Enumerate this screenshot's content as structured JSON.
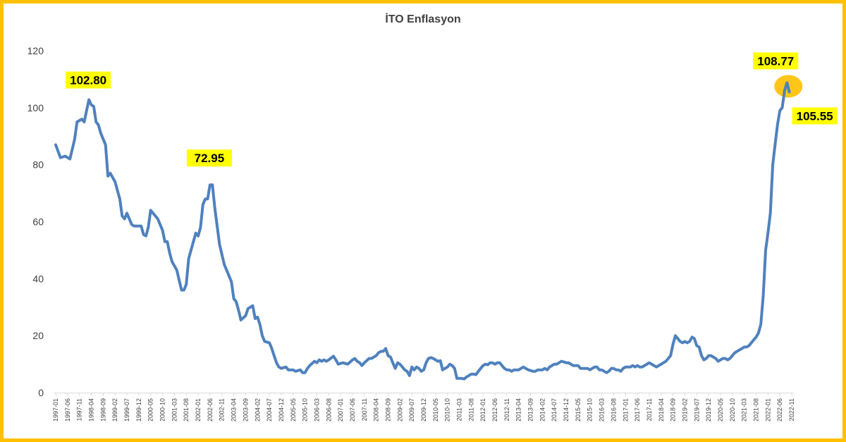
{
  "chart_data": {
    "type": "line",
    "title": "İTO Enflasyon",
    "xlabel": "",
    "ylabel": "",
    "ylim": [
      0,
      120
    ],
    "yticks": [
      0,
      20,
      40,
      60,
      80,
      100,
      120
    ],
    "grid": false,
    "line_color": "#4F81BD",
    "highlight_color": "#FFFF00",
    "peak_marker_color": "#FFC000",
    "frame_color": "#FFC000",
    "x_tick_labels": [
      "1997-01",
      "1997-06",
      "1997-11",
      "1998-04",
      "1998-09",
      "1999-02",
      "1999-07",
      "1999-12",
      "2000-05",
      "2000-10",
      "2001-03",
      "2001-08",
      "2002-01",
      "2002-06",
      "2002-11",
      "2003-04",
      "2003-09",
      "2004-02",
      "2004-07",
      "2004-12",
      "2005-05",
      "2005-10",
      "2006-03",
      "2006-08",
      "2007-01",
      "2007-06",
      "2007-11",
      "2008-04",
      "2008-09",
      "2009-02",
      "2009-07",
      "2009-12",
      "2010-05",
      "2010-10",
      "2011-03",
      "2011-08",
      "2012-01",
      "2012-06",
      "2012-11",
      "2013-04",
      "2013-09",
      "2014-02",
      "2014-07",
      "2014-12",
      "2015-05",
      "2015-10",
      "2016-03",
      "2016-08",
      "2017-01",
      "2017-06",
      "2017-11",
      "2018-04",
      "2018-09",
      "2019-02",
      "2019-07",
      "2019-12",
      "2020-05",
      "2020-10",
      "2021-03",
      "2021-08",
      "2022-01",
      "2022-06",
      "2022-11"
    ],
    "series": [
      {
        "points": [
          [
            "1997-01",
            87
          ],
          [
            "1997-03",
            82.5
          ],
          [
            "1997-05",
            83
          ],
          [
            "1997-07",
            82
          ],
          [
            "1997-09",
            89
          ],
          [
            "1997-10",
            95
          ],
          [
            "1997-12",
            96
          ],
          [
            "1998-01",
            95
          ],
          [
            "1998-03",
            102.8
          ],
          [
            "1998-04",
            101
          ],
          [
            "1998-05",
            100.5
          ],
          [
            "1998-06",
            95
          ],
          [
            "1998-07",
            94
          ],
          [
            "1998-08",
            91
          ],
          [
            "1998-10",
            87
          ],
          [
            "1998-11",
            76
          ],
          [
            "1998-12",
            77
          ],
          [
            "1999-02",
            74
          ],
          [
            "1999-04",
            68
          ],
          [
            "1999-05",
            62
          ],
          [
            "1999-06",
            61
          ],
          [
            "1999-07",
            63
          ],
          [
            "1999-09",
            59
          ],
          [
            "1999-10",
            58.5
          ],
          [
            "2000-01",
            58.5
          ],
          [
            "2000-02",
            55.5
          ],
          [
            "2000-03",
            55
          ],
          [
            "2000-04",
            58
          ],
          [
            "2000-05",
            64
          ],
          [
            "2000-07",
            62
          ],
          [
            "2000-08",
            61
          ],
          [
            "2000-10",
            57
          ],
          [
            "2000-11",
            53
          ],
          [
            "2000-12",
            53
          ],
          [
            "2001-01",
            49
          ],
          [
            "2001-02",
            46
          ],
          [
            "2001-04",
            43
          ],
          [
            "2001-05",
            39.5
          ],
          [
            "2001-06",
            36
          ],
          [
            "2001-07",
            36
          ],
          [
            "2001-08",
            38
          ],
          [
            "2001-09",
            47
          ],
          [
            "2001-11",
            53
          ],
          [
            "2001-12",
            56
          ],
          [
            "2002-01",
            55
          ],
          [
            "2002-02",
            58
          ],
          [
            "2002-03",
            66
          ],
          [
            "2002-04",
            68
          ],
          [
            "2002-05",
            68
          ],
          [
            "2002-06",
            72.95
          ],
          [
            "2002-07",
            72.95
          ],
          [
            "2002-08",
            65
          ],
          [
            "2002-10",
            52
          ],
          [
            "2002-12",
            45
          ],
          [
            "2003-02",
            41
          ],
          [
            "2003-03",
            39
          ],
          [
            "2003-04",
            33
          ],
          [
            "2003-05",
            32
          ],
          [
            "2003-06",
            29
          ],
          [
            "2003-07",
            25.5
          ],
          [
            "2003-09",
            27
          ],
          [
            "2003-10",
            29.5
          ],
          [
            "2003-12",
            30.5
          ],
          [
            "2004-01",
            26
          ],
          [
            "2004-02",
            26.5
          ],
          [
            "2004-03",
            24
          ],
          [
            "2004-04",
            20
          ],
          [
            "2004-05",
            18
          ],
          [
            "2004-07",
            17.5
          ],
          [
            "2004-08",
            15.5
          ],
          [
            "2004-09",
            13
          ],
          [
            "2004-10",
            10.5
          ],
          [
            "2004-11",
            9
          ],
          [
            "2004-12",
            8.5
          ],
          [
            "2005-02",
            9
          ],
          [
            "2005-03",
            8
          ],
          [
            "2005-05",
            8
          ],
          [
            "2005-06",
            7.5
          ],
          [
            "2005-08",
            8
          ],
          [
            "2005-09",
            7
          ],
          [
            "2005-10",
            7
          ],
          [
            "2005-11",
            8.5
          ],
          [
            "2005-12",
            9.5
          ],
          [
            "2006-02",
            11
          ],
          [
            "2006-03",
            10.5
          ],
          [
            "2006-04",
            11.5
          ],
          [
            "2006-05",
            11
          ],
          [
            "2006-06",
            11.5
          ],
          [
            "2006-07",
            11
          ],
          [
            "2006-08",
            11.5
          ],
          [
            "2006-10",
            12.8
          ],
          [
            "2006-11",
            11.5
          ],
          [
            "2006-12",
            10
          ],
          [
            "2007-02",
            10.5
          ],
          [
            "2007-04",
            10
          ],
          [
            "2007-06",
            11.5
          ],
          [
            "2007-07",
            12
          ],
          [
            "2007-08",
            11
          ],
          [
            "2007-09",
            10.5
          ],
          [
            "2007-10",
            9.5
          ],
          [
            "2007-11",
            10.5
          ],
          [
            "2008-01",
            12
          ],
          [
            "2008-02",
            12
          ],
          [
            "2008-03",
            12.5
          ],
          [
            "2008-04",
            13
          ],
          [
            "2008-05",
            14
          ],
          [
            "2008-06",
            14.5
          ],
          [
            "2008-07",
            14.5
          ],
          [
            "2008-08",
            15.5
          ],
          [
            "2008-09",
            13
          ],
          [
            "2008-10",
            12.5
          ],
          [
            "2008-11",
            10.5
          ],
          [
            "2008-12",
            8.5
          ],
          [
            "2009-01",
            10.5
          ],
          [
            "2009-02",
            10
          ],
          [
            "2009-03",
            9
          ],
          [
            "2009-04",
            8
          ],
          [
            "2009-05",
            7.5
          ],
          [
            "2009-06",
            6
          ],
          [
            "2009-07",
            9
          ],
          [
            "2009-08",
            8
          ],
          [
            "2009-09",
            9
          ],
          [
            "2009-10",
            8.5
          ],
          [
            "2009-11",
            7.5
          ],
          [
            "2009-12",
            8
          ],
          [
            "2010-01",
            10.5
          ],
          [
            "2010-02",
            12
          ],
          [
            "2010-03",
            12.3
          ],
          [
            "2010-04",
            12
          ],
          [
            "2010-05",
            11.5
          ],
          [
            "2010-06",
            11
          ],
          [
            "2010-07",
            11.2
          ],
          [
            "2010-08",
            8
          ],
          [
            "2010-09",
            8.5
          ],
          [
            "2010-10",
            9
          ],
          [
            "2010-11",
            10
          ],
          [
            "2010-12",
            9.5
          ],
          [
            "2011-01",
            8.5
          ],
          [
            "2011-02",
            5
          ],
          [
            "2011-03",
            5
          ],
          [
            "2011-04",
            5
          ],
          [
            "2011-05",
            4.8
          ],
          [
            "2011-06",
            5.5
          ],
          [
            "2011-07",
            6
          ],
          [
            "2011-08",
            6.5
          ],
          [
            "2011-09",
            6.5
          ],
          [
            "2011-10",
            6.3
          ],
          [
            "2011-11",
            7.5
          ],
          [
            "2011-12",
            8.5
          ],
          [
            "2012-01",
            9.5
          ],
          [
            "2012-02",
            10
          ],
          [
            "2012-03",
            9.8
          ],
          [
            "2012-04",
            10.5
          ],
          [
            "2012-05",
            10.5
          ],
          [
            "2012-06",
            10
          ],
          [
            "2012-07",
            10.5
          ],
          [
            "2012-08",
            10.5
          ],
          [
            "2012-09",
            9.5
          ],
          [
            "2012-10",
            8.5
          ],
          [
            "2012-11",
            8
          ],
          [
            "2012-12",
            8
          ],
          [
            "2013-01",
            7.5
          ],
          [
            "2013-02",
            8
          ],
          [
            "2013-03",
            8
          ],
          [
            "2013-04",
            8
          ],
          [
            "2013-05",
            8.5
          ],
          [
            "2013-06",
            9
          ],
          [
            "2013-07",
            8.5
          ],
          [
            "2013-08",
            8
          ],
          [
            "2013-09",
            7.8
          ],
          [
            "2013-10",
            7.5
          ],
          [
            "2013-11",
            7.5
          ],
          [
            "2013-12",
            8
          ],
          [
            "2014-01",
            8
          ],
          [
            "2014-02",
            8
          ],
          [
            "2014-03",
            8.5
          ],
          [
            "2014-04",
            8
          ],
          [
            "2014-05",
            9
          ],
          [
            "2014-06",
            9.5
          ],
          [
            "2014-07",
            10
          ],
          [
            "2014-08",
            10
          ],
          [
            "2014-09",
            10.5
          ],
          [
            "2014-10",
            11
          ],
          [
            "2014-11",
            10.8
          ],
          [
            "2014-12",
            10.5
          ],
          [
            "2015-01",
            10.5
          ],
          [
            "2015-02",
            10
          ],
          [
            "2015-03",
            9.5
          ],
          [
            "2015-04",
            9.5
          ],
          [
            "2015-05",
            9.5
          ],
          [
            "2015-06",
            8.5
          ],
          [
            "2015-07",
            8.5
          ],
          [
            "2015-08",
            8.5
          ],
          [
            "2015-09",
            8.5
          ],
          [
            "2015-10",
            8
          ],
          [
            "2015-11",
            8.5
          ],
          [
            "2015-12",
            9
          ],
          [
            "2016-01",
            9
          ],
          [
            "2016-02",
            8
          ],
          [
            "2016-03",
            8
          ],
          [
            "2016-04",
            7.5
          ],
          [
            "2016-05",
            7
          ],
          [
            "2016-06",
            7.5
          ],
          [
            "2016-07",
            8.5
          ],
          [
            "2016-08",
            8.5
          ],
          [
            "2016-09",
            8
          ],
          [
            "2016-10",
            8
          ],
          [
            "2016-11",
            7.5
          ],
          [
            "2016-12",
            8.5
          ],
          [
            "2017-01",
            9
          ],
          [
            "2017-02",
            9
          ],
          [
            "2017-03",
            9
          ],
          [
            "2017-04",
            9.5
          ],
          [
            "2017-05",
            9
          ],
          [
            "2017-06",
            9.5
          ],
          [
            "2017-07",
            9
          ],
          [
            "2017-08",
            9
          ],
          [
            "2017-09",
            9.5
          ],
          [
            "2017-10",
            10
          ],
          [
            "2017-11",
            10.5
          ],
          [
            "2017-12",
            10
          ],
          [
            "2018-01",
            9.5
          ],
          [
            "2018-02",
            9
          ],
          [
            "2018-03",
            9.5
          ],
          [
            "2018-04",
            10
          ],
          [
            "2018-05",
            10.5
          ],
          [
            "2018-06",
            11
          ],
          [
            "2018-07",
            12
          ],
          [
            "2018-08",
            13
          ],
          [
            "2018-09",
            17
          ],
          [
            "2018-10",
            20
          ],
          [
            "2018-11",
            19
          ],
          [
            "2018-12",
            18
          ],
          [
            "2019-01",
            17.5
          ],
          [
            "2019-02",
            18
          ],
          [
            "2019-03",
            17.5
          ],
          [
            "2019-04",
            18
          ],
          [
            "2019-05",
            19.5
          ],
          [
            "2019-06",
            19
          ],
          [
            "2019-07",
            16.5
          ],
          [
            "2019-08",
            16
          ],
          [
            "2019-09",
            13
          ],
          [
            "2019-10",
            11.5
          ],
          [
            "2019-11",
            12
          ],
          [
            "2019-12",
            13
          ],
          [
            "2020-01",
            13
          ],
          [
            "2020-02",
            12.5
          ],
          [
            "2020-03",
            12
          ],
          [
            "2020-04",
            11
          ],
          [
            "2020-05",
            11.5
          ],
          [
            "2020-06",
            12
          ],
          [
            "2020-07",
            12
          ],
          [
            "2020-08",
            11.5
          ],
          [
            "2020-09",
            12
          ],
          [
            "2020-10",
            13
          ],
          [
            "2020-11",
            14
          ],
          [
            "2020-12",
            14.5
          ],
          [
            "2021-01",
            15
          ],
          [
            "2021-02",
            15.5
          ],
          [
            "2021-03",
            16
          ],
          [
            "2021-04",
            16
          ],
          [
            "2021-05",
            16.5
          ],
          [
            "2021-06",
            17.5
          ],
          [
            "2021-07",
            18.5
          ],
          [
            "2021-08",
            19.5
          ],
          [
            "2021-09",
            21
          ],
          [
            "2021-10",
            24
          ],
          [
            "2021-11",
            34
          ],
          [
            "2021-12",
            50
          ],
          [
            "2022-01",
            56
          ],
          [
            "2022-02",
            63
          ],
          [
            "2022-03",
            80
          ],
          [
            "2022-04",
            87
          ],
          [
            "2022-05",
            94
          ],
          [
            "2022-06",
            99
          ],
          [
            "2022-07",
            100
          ],
          [
            "2022-08",
            106
          ],
          [
            "2022-09",
            108.77
          ],
          [
            "2022-10",
            105.55
          ]
        ]
      }
    ],
    "annotations": [
      {
        "label": "102.80",
        "x": "1998-03",
        "y": 102.8
      },
      {
        "label": "72.95",
        "x": "2002-06",
        "y": 72.95
      },
      {
        "label": "108.77",
        "x": "2022-09",
        "y": 108.77
      },
      {
        "label": "105.55",
        "x": "2022-10",
        "y": 105.55
      }
    ]
  }
}
